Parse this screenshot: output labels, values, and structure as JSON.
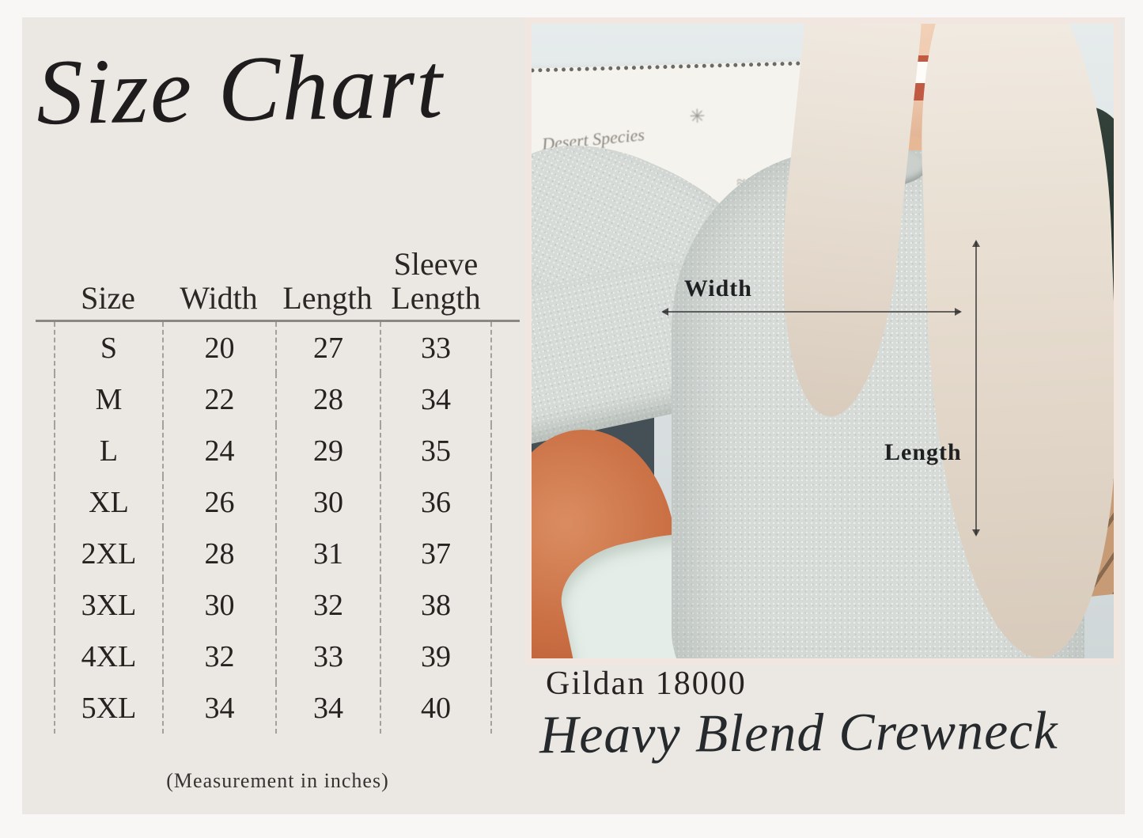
{
  "size_chart": {
    "title": "Size Chart",
    "headers": {
      "col1": "Size",
      "col2": "Width",
      "col3": "Length",
      "col4_line1": "Sleeve",
      "col4_line2": "Length"
    },
    "footnote": "(Measurement in inches)"
  },
  "photo": {
    "width_label": "Width",
    "length_label": "Length",
    "tapestry_text": "Desert Species"
  },
  "product": {
    "model": "Gildan 18000",
    "name": "Heavy Blend Crewneck"
  },
  "colors": {
    "canvas_border": "#f8f7f5",
    "page_background": "#ebe8e4",
    "ink": "#23211f",
    "photo_frame": "#f2e7e0",
    "sweatshirt_heather": "#d7dbd8",
    "annotation_ink": "#1d1f21"
  },
  "chart_data": {
    "type": "table",
    "title": "Size Chart",
    "columns": [
      "Size",
      "Width",
      "Length",
      "Sleeve Length"
    ],
    "units": "inches",
    "rows": [
      [
        "S",
        20,
        27,
        33
      ],
      [
        "M",
        22,
        28,
        34
      ],
      [
        "L",
        24,
        29,
        35
      ],
      [
        "XL",
        26,
        30,
        36
      ],
      [
        "2XL",
        28,
        31,
        37
      ],
      [
        "3XL",
        30,
        32,
        38
      ],
      [
        "4XL",
        32,
        33,
        39
      ],
      [
        "5XL",
        34,
        34,
        40
      ]
    ]
  }
}
